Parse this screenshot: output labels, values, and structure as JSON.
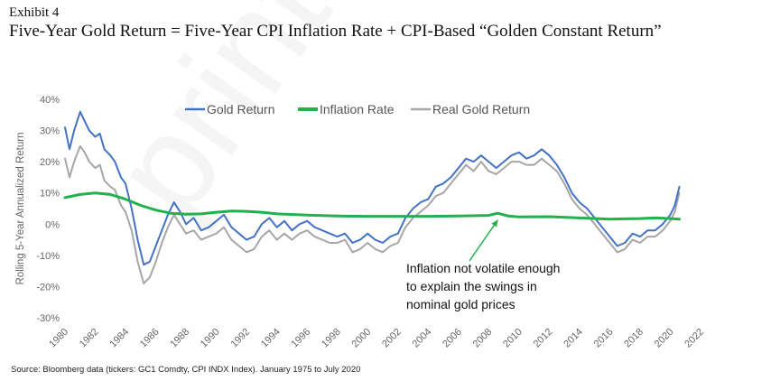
{
  "header": {
    "exhibit": "Exhibit 4",
    "title": "Five-Year Gold Return = Five-Year CPI Inflation Rate + CPI-Based “Golden Constant Return”"
  },
  "watermark": "print not per",
  "footer": {
    "source": "Source: Bloomberg data (tickers: GC1 Comdty, CPI INDX Index). January 1975 to July 2020"
  },
  "colors": {
    "gold": "#4472C4",
    "inflation": "#22B14C",
    "real": "#A6A6A6",
    "annotation_arrow": "#22B14C"
  },
  "chart_data": {
    "type": "line",
    "ylabel": "Rolling 5-Year Annualized Return",
    "xlabel": "",
    "xlim": [
      1980,
      2022
    ],
    "ylim": [
      -30,
      40
    ],
    "y_ticks": [
      "40%",
      "30%",
      "20%",
      "10%",
      "0%",
      "-10%",
      "-20%",
      "-30%"
    ],
    "x_ticks": [
      "1980",
      "1982",
      "1984",
      "1986",
      "1988",
      "1990",
      "1992",
      "1994",
      "1996",
      "1998",
      "2000",
      "2002",
      "2004",
      "2006",
      "2008",
      "2010",
      "2012",
      "2014",
      "2016",
      "2018",
      "2020",
      "2022"
    ],
    "legend_position": "top-center",
    "grid": false,
    "annotation": {
      "lines": [
        "Inflation not volatile enough",
        "to explain the swings in",
        "nominal gold prices"
      ],
      "arrow_to": [
        2008.6,
        2.5
      ]
    },
    "series": [
      {
        "name": "Gold Return",
        "color_key": "gold",
        "x": [
          1980.0,
          1980.3,
          1980.6,
          1981.0,
          1981.3,
          1981.6,
          1982.0,
          1982.3,
          1982.6,
          1983.0,
          1983.3,
          1983.7,
          1984.0,
          1984.4,
          1984.8,
          1985.2,
          1985.6,
          1986.0,
          1986.4,
          1986.8,
          1987.2,
          1987.6,
          1988.0,
          1988.5,
          1989.0,
          1989.5,
          1990.0,
          1990.5,
          1991.0,
          1991.5,
          1992.0,
          1992.5,
          1993.0,
          1993.5,
          1994.0,
          1994.5,
          1995.0,
          1995.5,
          1996.0,
          1996.5,
          1997.0,
          1997.5,
          1998.0,
          1998.5,
          1999.0,
          1999.5,
          2000.0,
          2000.5,
          2001.0,
          2001.5,
          2002.0,
          2002.5,
          2003.0,
          2003.5,
          2004.0,
          2004.5,
          2005.0,
          2005.5,
          2006.0,
          2006.5,
          2007.0,
          2007.5,
          2008.0,
          2008.5,
          2009.0,
          2009.5,
          2010.0,
          2010.5,
          2011.0,
          2011.5,
          2012.0,
          2012.5,
          2013.0,
          2013.5,
          2014.0,
          2014.5,
          2015.0,
          2015.5,
          2016.0,
          2016.5,
          2017.0,
          2017.5,
          2018.0,
          2018.5,
          2019.0,
          2019.5,
          2020.0,
          2020.3,
          2020.6
        ],
        "y": [
          31,
          24,
          30,
          36,
          33,
          30,
          28,
          29,
          24,
          22,
          20,
          15,
          13,
          5,
          -5,
          -13,
          -12,
          -7,
          -2,
          3,
          7,
          4,
          0,
          2,
          -2,
          -1,
          1,
          3,
          -1,
          -3,
          -5,
          -4,
          0,
          2,
          -1,
          1,
          -2,
          0,
          1,
          -1,
          -2,
          -3,
          -4,
          -3,
          -6,
          -5,
          -3,
          -5,
          -6,
          -4,
          -3,
          2,
          5,
          7,
          8,
          12,
          13,
          15,
          18,
          21,
          20,
          22,
          20,
          18,
          20,
          22,
          23,
          21,
          22,
          24,
          22,
          19,
          15,
          10,
          7,
          5,
          2,
          -1,
          -4,
          -7,
          -6,
          -3,
          -4,
          -2,
          -2,
          0,
          3,
          6,
          12
        ]
      },
      {
        "name": "Inflation Rate",
        "color_key": "inflation",
        "x": [
          1980.0,
          1981.0,
          1982.0,
          1983.0,
          1984.0,
          1985.0,
          1986.0,
          1987.0,
          1988.0,
          1989.0,
          1990.0,
          1991.0,
          1992.0,
          1993.0,
          1994.0,
          1996.0,
          1998.0,
          2000.0,
          2002.0,
          2004.0,
          2006.0,
          2008.0,
          2008.6,
          2009.3,
          2010.0,
          2012.0,
          2014.0,
          2016.0,
          2017.0,
          2018.0,
          2019.0,
          2020.0,
          2020.6
        ],
        "y": [
          8.5,
          9.5,
          10.0,
          9.5,
          8.0,
          6.0,
          4.5,
          3.5,
          3.2,
          3.3,
          3.8,
          4.2,
          4.1,
          3.8,
          3.3,
          2.9,
          2.6,
          2.5,
          2.5,
          2.5,
          2.6,
          2.8,
          3.5,
          2.6,
          2.3,
          2.4,
          2.0,
          1.6,
          1.7,
          1.8,
          2.0,
          1.8,
          1.6
        ]
      },
      {
        "name": "Real Gold Return",
        "color_key": "real",
        "x": [
          1980.0,
          1980.3,
          1980.6,
          1981.0,
          1981.3,
          1981.6,
          1982.0,
          1982.3,
          1982.6,
          1983.0,
          1983.3,
          1983.7,
          1984.0,
          1984.4,
          1984.8,
          1985.2,
          1985.6,
          1986.0,
          1986.4,
          1986.8,
          1987.2,
          1987.6,
          1988.0,
          1988.5,
          1989.0,
          1989.5,
          1990.0,
          1990.5,
          1991.0,
          1991.5,
          1992.0,
          1992.5,
          1993.0,
          1993.5,
          1994.0,
          1994.5,
          1995.0,
          1995.5,
          1996.0,
          1996.5,
          1997.0,
          1997.5,
          1998.0,
          1998.5,
          1999.0,
          1999.5,
          2000.0,
          2000.5,
          2001.0,
          2001.5,
          2002.0,
          2002.5,
          2003.0,
          2003.5,
          2004.0,
          2004.5,
          2005.0,
          2005.5,
          2006.0,
          2006.5,
          2007.0,
          2007.5,
          2008.0,
          2008.5,
          2009.0,
          2009.5,
          2010.0,
          2010.5,
          2011.0,
          2011.5,
          2012.0,
          2012.5,
          2013.0,
          2013.5,
          2014.0,
          2014.5,
          2015.0,
          2015.5,
          2016.0,
          2016.5,
          2017.0,
          2017.5,
          2018.0,
          2018.5,
          2019.0,
          2019.5,
          2020.0,
          2020.3,
          2020.6
        ],
        "y": [
          21,
          15,
          20,
          25,
          23,
          20,
          18,
          19,
          14,
          12,
          11,
          6,
          4,
          -2,
          -12,
          -19,
          -17,
          -12,
          -6,
          -1,
          3,
          0,
          -3,
          -2,
          -5,
          -4,
          -3,
          -1,
          -5,
          -7,
          -9,
          -8,
          -4,
          -2,
          -5,
          -3,
          -5,
          -3,
          -2,
          -4,
          -5,
          -6,
          -6,
          -5,
          -9,
          -8,
          -6,
          -8,
          -9,
          -7,
          -6,
          -1,
          2,
          4,
          6,
          9,
          10,
          13,
          16,
          19,
          17,
          20,
          17,
          16,
          18,
          20,
          20,
          19,
          19,
          21,
          19,
          17,
          13,
          8,
          5,
          3,
          0,
          -3,
          -6,
          -9,
          -8,
          -5,
          -6,
          -4,
          -4,
          -2,
          1,
          4,
          10
        ]
      }
    ]
  }
}
